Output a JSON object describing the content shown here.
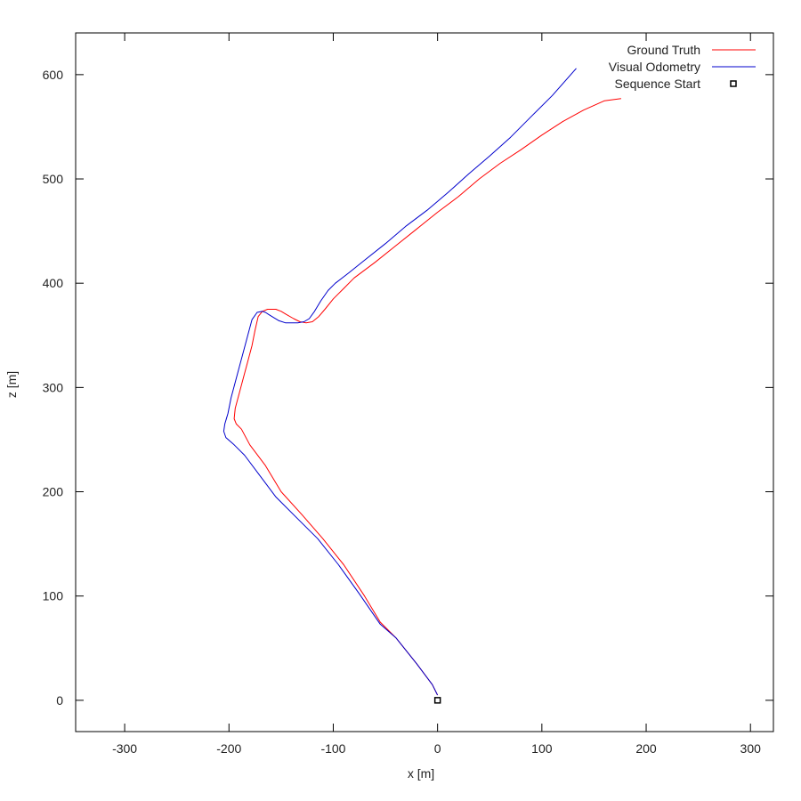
{
  "chart_data": {
    "type": "line",
    "title": "",
    "xlabel": "x [m]",
    "ylabel": "z [m]",
    "xlim": [
      -347,
      322
    ],
    "ylim": [
      -30,
      640
    ],
    "xticks": [
      -300,
      -200,
      -100,
      0,
      100,
      200,
      300
    ],
    "yticks": [
      0,
      100,
      200,
      300,
      400,
      500,
      600
    ],
    "xtick_labels": [
      "-300",
      "-200",
      "-100",
      "0",
      "100",
      "200",
      "300"
    ],
    "ytick_labels": [
      "0",
      "100",
      "200",
      "300",
      "400",
      "500",
      "600"
    ],
    "grid": false,
    "legend_position": "top-right",
    "series": [
      {
        "name": "Ground Truth",
        "color": "#ff0000",
        "x": [
          0,
          -5,
          -20,
          -40,
          -55,
          -70,
          -90,
          -110,
          -130,
          -150,
          -165,
          -180,
          -188,
          -193,
          -195,
          -194,
          -190,
          -186,
          -182,
          -178,
          -175,
          -172,
          -168,
          -163,
          -155,
          -150,
          -145,
          -138,
          -132,
          -126,
          -120,
          -114,
          -108,
          -100,
          -90,
          -80,
          -60,
          -40,
          -20,
          0,
          20,
          40,
          60,
          80,
          100,
          120,
          140,
          160,
          176
        ],
        "y": [
          5,
          15,
          35,
          60,
          75,
          100,
          130,
          155,
          178,
          200,
          225,
          245,
          260,
          265,
          270,
          280,
          295,
          310,
          325,
          340,
          355,
          368,
          373,
          375,
          375,
          373,
          370,
          366,
          363,
          362,
          363,
          368,
          375,
          385,
          395,
          405,
          420,
          436,
          452,
          468,
          483,
          500,
          515,
          528,
          542,
          555,
          566,
          575,
          577
        ]
      },
      {
        "name": "Visual Odometry",
        "color": "#0000cc",
        "x": [
          0,
          -5,
          -20,
          -40,
          -55,
          -75,
          -95,
          -115,
          -135,
          -155,
          -170,
          -185,
          -195,
          -203,
          -205,
          -204,
          -201,
          -198,
          -194,
          -190,
          -186,
          -182,
          -178,
          -173,
          -168,
          -165,
          -162,
          -157,
          -152,
          -146,
          -140,
          -134,
          -128,
          -123,
          -118,
          -112,
          -105,
          -98,
          -85,
          -70,
          -50,
          -30,
          -10,
          10,
          30,
          50,
          70,
          90,
          110,
          133
        ],
        "y": [
          5,
          15,
          35,
          60,
          73,
          102,
          130,
          155,
          175,
          195,
          215,
          235,
          245,
          252,
          258,
          265,
          275,
          290,
          305,
          320,
          335,
          350,
          365,
          372,
          373,
          372,
          370,
          367,
          364,
          362,
          362,
          362,
          363,
          366,
          373,
          383,
          393,
          400,
          410,
          422,
          438,
          455,
          470,
          487,
          505,
          522,
          540,
          560,
          580,
          606
        ]
      }
    ],
    "markers": [
      {
        "name": "Sequence Start",
        "x": 0,
        "y": 0,
        "shape": "square",
        "color": "#000000"
      }
    ]
  }
}
